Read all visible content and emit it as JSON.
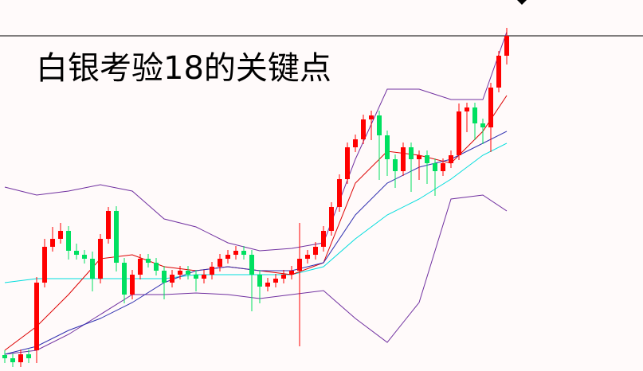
{
  "chart_data": {
    "type": "candlestick",
    "title": "白银考验18的关键点",
    "ylim": [
      0,
      466
    ],
    "up_color": "#ff0000",
    "down_color": "#00e060",
    "open": [
      20,
      16,
      11,
      21,
      26,
      111,
      156,
      166,
      176,
      151,
      146,
      141,
      116,
      166,
      201,
      136,
      96,
      121,
      141,
      136,
      126,
      111,
      121,
      126,
      121,
      116,
      121,
      131,
      141,
      146,
      151,
      146,
      121,
      106,
      111,
      116,
      121,
      126,
      141,
      146,
      156,
      176,
      206,
      241,
      281,
      291,
      316,
      321,
      296,
      266,
      251,
      281,
      266,
      271,
      261,
      251,
      261,
      271,
      326,
      331,
      311,
      306,
      356,
      396
    ],
    "high": [
      26,
      22,
      27,
      27,
      118,
      166,
      181,
      186,
      182,
      160,
      152,
      150,
      172,
      206,
      207,
      142,
      127,
      147,
      147,
      142,
      132,
      127,
      132,
      132,
      127,
      127,
      137,
      147,
      152,
      157,
      157,
      152,
      127,
      117,
      122,
      127,
      132,
      186,
      152,
      162,
      182,
      212,
      247,
      287,
      297,
      322,
      327,
      327,
      302,
      272,
      287,
      287,
      277,
      277,
      267,
      267,
      277,
      336,
      337,
      337,
      317,
      362,
      402,
      431
    ],
    "low": [
      10,
      5,
      5,
      10,
      10,
      105,
      150,
      160,
      140,
      140,
      135,
      100,
      110,
      160,
      125,
      85,
      90,
      115,
      130,
      120,
      90,
      105,
      115,
      115,
      100,
      110,
      115,
      125,
      135,
      140,
      140,
      75,
      85,
      100,
      105,
      110,
      115,
      31,
      135,
      140,
      150,
      170,
      200,
      235,
      275,
      285,
      290,
      240,
      245,
      230,
      245,
      225,
      240,
      235,
      220,
      245,
      255,
      265,
      300,
      290,
      285,
      275,
      350,
      385
    ],
    "close": [
      16,
      11,
      21,
      16,
      111,
      156,
      166,
      176,
      151,
      146,
      141,
      116,
      166,
      201,
      136,
      96,
      121,
      141,
      136,
      126,
      111,
      121,
      126,
      121,
      116,
      121,
      131,
      141,
      146,
      151,
      146,
      121,
      106,
      111,
      116,
      121,
      126,
      141,
      146,
      156,
      176,
      206,
      241,
      281,
      291,
      316,
      321,
      296,
      266,
      251,
      281,
      266,
      271,
      261,
      251,
      261,
      271,
      326,
      331,
      311,
      306,
      356,
      396,
      421
    ],
    "lines": [
      {
        "color": "#7030a0",
        "x": [
          0,
          4,
          8,
          12,
          16,
          20,
          24,
          28,
          32,
          36,
          40,
          44,
          48,
          52,
          56,
          60,
          63
        ],
        "values": [
          231,
          221,
          226,
          234,
          226,
          191,
          181,
          161,
          151,
          154,
          161,
          266,
          354,
          354,
          341,
          341,
          426
        ]
      },
      {
        "color": "#7030a0",
        "x": [
          0,
          4,
          8,
          12,
          16,
          20,
          24,
          28,
          32,
          36,
          40,
          44,
          48,
          52,
          56,
          60,
          63
        ],
        "values": [
          21,
          26,
          46,
          71,
          96,
          96,
          98,
          96,
          91,
          96,
          101,
          66,
          36,
          86,
          216,
          221,
          201
        ]
      },
      {
        "color": "#00dddd",
        "x": [
          0,
          4,
          8,
          12,
          16,
          20,
          24,
          28,
          32,
          36,
          40,
          44,
          48,
          52,
          56,
          60,
          63
        ],
        "values": [
          111,
          116,
          116,
          116,
          116,
          116,
          121,
          121,
          121,
          121,
          131,
          166,
          196,
          216,
          241,
          271,
          286
        ]
      },
      {
        "color": "#dd0000",
        "x": [
          0,
          4,
          8,
          12,
          16,
          20,
          24,
          28,
          32,
          36,
          40,
          44,
          48,
          52,
          56,
          60,
          63
        ],
        "values": [
          26,
          56,
          96,
          141,
          146,
          131,
          126,
          131,
          126,
          121,
          136,
          236,
          276,
          271,
          261,
          301,
          346
        ]
      },
      {
        "color": "#3030b0",
        "x": [
          0,
          4,
          8,
          12,
          16,
          20,
          24,
          28,
          32,
          36,
          40,
          44,
          48,
          52,
          56,
          60,
          63
        ],
        "values": [
          21,
          31,
          51,
          66,
          86,
          111,
          126,
          131,
          126,
          126,
          136,
          196,
          236,
          256,
          266,
          286,
          301
        ]
      }
    ]
  }
}
